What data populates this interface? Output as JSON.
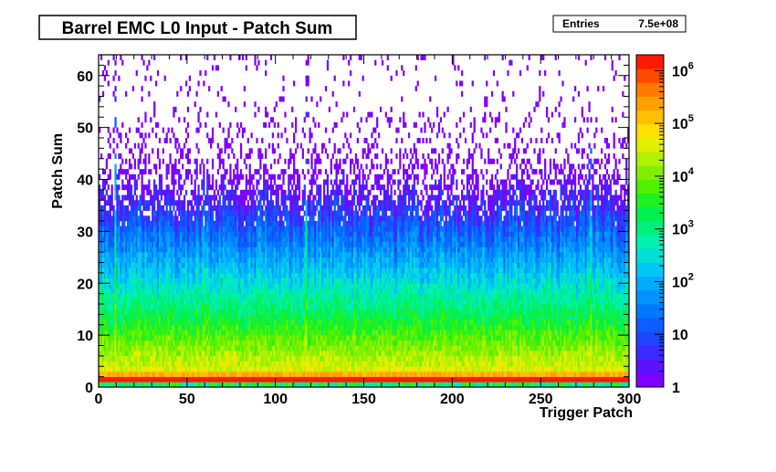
{
  "chart_data": {
    "type": "heatmap",
    "title": "Barrel EMC L0 Input - Patch Sum",
    "xlabel": "Trigger Patch",
    "ylabel": "Patch Sum",
    "xlim": [
      0,
      300
    ],
    "ylim": [
      0,
      64
    ],
    "zlim": [
      1,
      2000000
    ],
    "z_scale": "log",
    "x_ticks": [
      0,
      50,
      100,
      150,
      200,
      250,
      300
    ],
    "y_ticks": [
      0,
      10,
      20,
      30,
      40,
      50,
      60
    ],
    "z_ticks": [
      {
        "value": 1,
        "base": "1",
        "exp": ""
      },
      {
        "value": 10,
        "base": "10",
        "exp": ""
      },
      {
        "value": 100,
        "base": "10",
        "exp": "2"
      },
      {
        "value": 1000,
        "base": "10",
        "exp": "3"
      },
      {
        "value": 10000,
        "base": "10",
        "exp": "4"
      },
      {
        "value": 100000,
        "base": "10",
        "exp": "5"
      },
      {
        "value": 1000000,
        "base": "10",
        "exp": "6"
      }
    ],
    "stats": {
      "label": "Entries",
      "value": "7.5e+08"
    },
    "palette": [
      "#7f00ff",
      "#5c12ff",
      "#3a2bff",
      "#1f45ff",
      "#0a5eff",
      "#0078ff",
      "#0092ff",
      "#00acff",
      "#00c6f5",
      "#00e0d8",
      "#00f0b0",
      "#00f080",
      "#00f050",
      "#20f020",
      "#50f000",
      "#80f000",
      "#b0f000",
      "#e0f000",
      "#ffe000",
      "#ffc000",
      "#ffa000",
      "#ff7a00",
      "#ff4a00",
      "#ff1a00"
    ],
    "grid": false
  }
}
